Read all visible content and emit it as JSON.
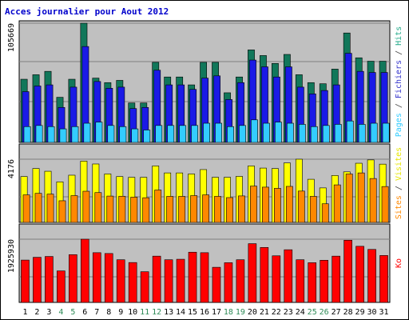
{
  "chart_data": [
    {
      "type": "bar",
      "title": "Acces journalier pour Aout 2012",
      "ylabel_parts": [
        {
          "text": "Pages",
          "color": "#33ccff"
        },
        {
          "text": " / ",
          "color": "#444444"
        },
        {
          "text": "Fichiers",
          "color": "#3333cc"
        },
        {
          "text": " / ",
          "color": "#444444"
        },
        {
          "text": "Hits",
          "color": "#22aa88"
        }
      ],
      "max_label": "105669",
      "ylim": [
        0,
        105669
      ],
      "grid": true,
      "categories": [
        "1",
        "2",
        "3",
        "4",
        "5",
        "6",
        "7",
        "8",
        "9",
        "10",
        "11",
        "12",
        "13",
        "14",
        "15",
        "16",
        "17",
        "18",
        "19",
        "20",
        "21",
        "22",
        "23",
        "24",
        "25",
        "26",
        "27",
        "28",
        "29",
        "30",
        "31"
      ],
      "weekend_days": [
        "4",
        "5",
        "11",
        "12",
        "18",
        "19",
        "25",
        "26"
      ],
      "series": [
        {
          "name": "Hits",
          "color": "#11775a",
          "values": [
            56000,
            60000,
            63000,
            40000,
            56000,
            105669,
            57000,
            53000,
            55000,
            35000,
            35000,
            71000,
            58000,
            58000,
            51000,
            71000,
            71000,
            44000,
            58000,
            82000,
            77000,
            70000,
            78000,
            60000,
            53000,
            52000,
            65000,
            97000,
            75000,
            72000,
            72000
          ]
        },
        {
          "name": "Fichiers",
          "color": "#1a1ae6",
          "values": [
            45000,
            50000,
            51000,
            31000,
            49000,
            85000,
            54000,
            48000,
            49000,
            30000,
            31000,
            64000,
            51000,
            51000,
            47000,
            57000,
            59000,
            38000,
            53000,
            73000,
            67000,
            58000,
            67000,
            49000,
            43000,
            46000,
            51000,
            79000,
            63000,
            62000,
            62000
          ]
        },
        {
          "name": "Pages",
          "color": "#33ccff",
          "values": [
            14000,
            15000,
            14000,
            12000,
            14000,
            17000,
            18000,
            15000,
            14000,
            12000,
            11000,
            15000,
            15000,
            15000,
            15000,
            17000,
            17000,
            14000,
            15000,
            20000,
            17000,
            18000,
            17000,
            16000,
            14000,
            15000,
            16000,
            19000,
            16000,
            17000,
            17000
          ]
        }
      ]
    },
    {
      "type": "bar",
      "ylabel_parts": [
        {
          "text": "Sites",
          "color": "#ff8800"
        },
        {
          "text": " / ",
          "color": "#444444"
        },
        {
          "text": "Visites",
          "color": "#e6e600"
        }
      ],
      "max_label": "4176",
      "ylim": [
        0,
        4176
      ],
      "grid": true,
      "series": [
        {
          "name": "Visites",
          "color": "#ffff00",
          "values": [
            3030,
            3560,
            3380,
            2680,
            3120,
            4050,
            3860,
            3200,
            3030,
            2980,
            2980,
            3730,
            3270,
            3270,
            3200,
            3490,
            2980,
            2980,
            3040,
            3730,
            3590,
            3560,
            3930,
            4176,
            2850,
            2280,
            3100,
            3340,
            3910,
            4130,
            3850
          ]
        },
        {
          "name": "Sites",
          "color": "#ff8800",
          "values": [
            1820,
            1920,
            1870,
            1430,
            1770,
            2060,
            1970,
            1740,
            1730,
            1670,
            1630,
            2140,
            1720,
            1720,
            1770,
            1820,
            1720,
            1640,
            1750,
            2400,
            2330,
            2250,
            2380,
            2070,
            1720,
            1230,
            2480,
            3200,
            3270,
            2900,
            2370
          ]
        }
      ]
    },
    {
      "type": "bar",
      "ylabel_parts": [
        {
          "text": "Ko",
          "color": "#ff0000"
        }
      ],
      "max_label": "1925930",
      "ylim": [
        0,
        1925930
      ],
      "grid": true,
      "series": [
        {
          "name": "Ko",
          "color": "#ff0000",
          "values": [
            1290000,
            1375000,
            1400000,
            960000,
            1455000,
            1925930,
            1515000,
            1490000,
            1300000,
            1215000,
            935000,
            1410000,
            1300000,
            1315000,
            1530000,
            1515000,
            1070000,
            1210000,
            1300000,
            1790000,
            1675000,
            1420000,
            1605000,
            1300000,
            1210000,
            1285000,
            1410000,
            1895000,
            1710000,
            1615000,
            1430000
          ]
        }
      ]
    }
  ]
}
